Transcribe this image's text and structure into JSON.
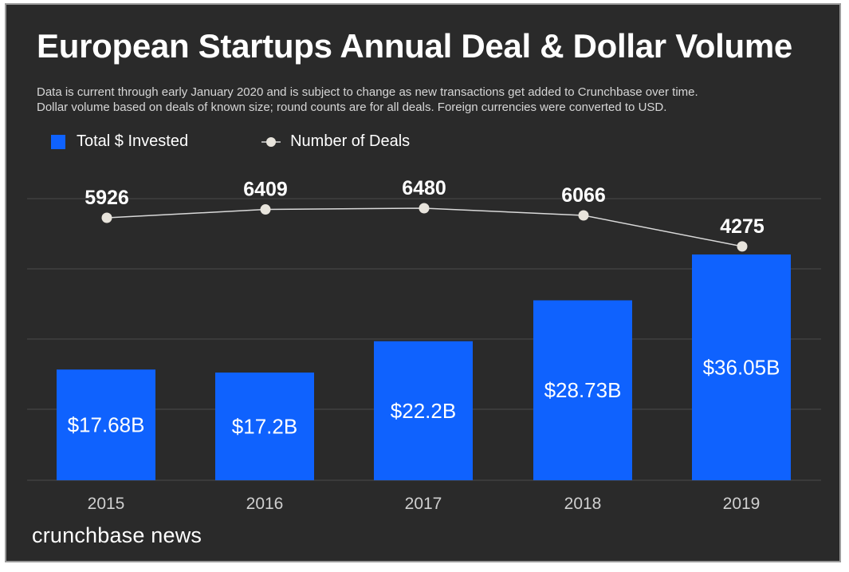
{
  "header": {
    "title": "European Startups Annual Deal & Dollar Volume",
    "subtitle_line1": "Data is current through early January 2020 and is subject to change as new transactions get added to Crunchbase over time.",
    "subtitle_line2": "Dollar volume based on deals of known size; round counts are for all deals. Foreign currencies were converted to USD."
  },
  "legend": {
    "bar_label": "Total $ Invested",
    "line_label": "Number of Deals"
  },
  "brand": {
    "text": "crunchbase news"
  },
  "colors": {
    "background": "#2a2a2a",
    "bar": "#0f62fe",
    "line": "#d9d9d9",
    "marker": "#e8e4dc",
    "grid": "#4a4a4a",
    "tick_label": "#cfcfcf"
  },
  "chart_data": {
    "type": "bar",
    "categories": [
      "2015",
      "2016",
      "2017",
      "2018",
      "2019"
    ],
    "series": [
      {
        "name": "Total $ Invested",
        "type": "bar",
        "values": [
          17.68,
          17.2,
          22.2,
          28.73,
          36.05
        ],
        "labels": [
          "$17.68B",
          "$17.2B",
          "$22.2B",
          "$28.73B",
          "$36.05B"
        ]
      },
      {
        "name": "Number of Deals",
        "type": "line",
        "values": [
          5926,
          6409,
          6480,
          6066,
          4275
        ],
        "labels": [
          "5926",
          "6409",
          "6480",
          "6066",
          "4275"
        ]
      }
    ],
    "grid": true,
    "legend_position": "top-left"
  }
}
